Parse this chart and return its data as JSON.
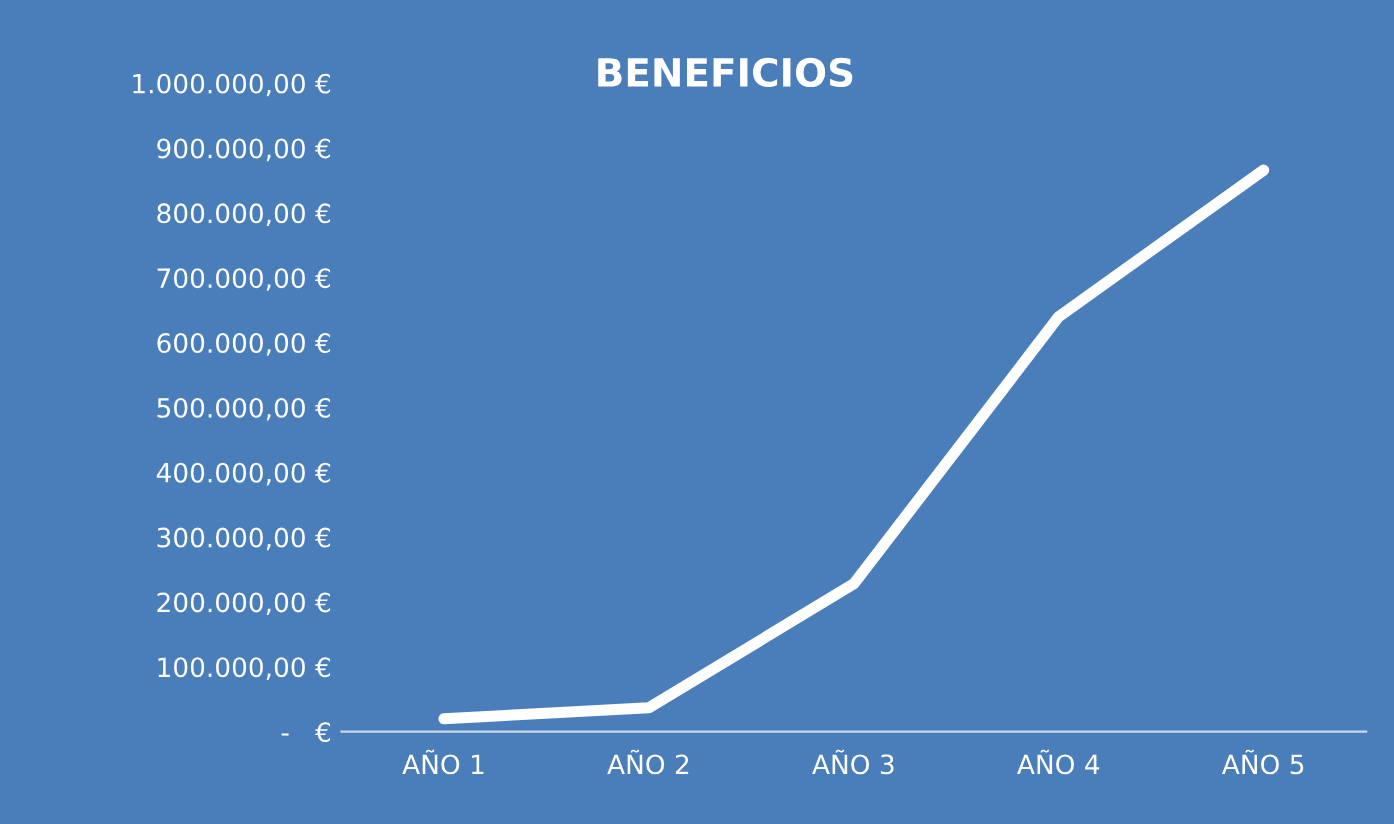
{
  "chart_data": {
    "type": "line",
    "title": "BENEFICIOS",
    "categories": [
      "AÑO 1",
      "AÑO 2",
      "AÑO 3",
      "AÑO 4",
      "AÑO 5"
    ],
    "series": [
      {
        "color": "#ffffff",
        "values": [
          20000,
          37000,
          228000,
          640000,
          866000
        ]
      }
    ],
    "ylim": [
      0,
      1000000
    ],
    "yticks": [
      {
        "value": 0,
        "label": "-   €"
      },
      {
        "value": 100000,
        "label": "100.000,00 €"
      },
      {
        "value": 200000,
        "label": "200.000,00 €"
      },
      {
        "value": 300000,
        "label": "300.000,00 €"
      },
      {
        "value": 400000,
        "label": "400.000,00 €"
      },
      {
        "value": 500000,
        "label": "500.000,00 €"
      },
      {
        "value": 600000,
        "label": "600.000,00 €"
      },
      {
        "value": 700000,
        "label": "700.000,00 €"
      },
      {
        "value": 800000,
        "label": "800.000,00 €"
      },
      {
        "value": 900000,
        "label": "900.000,00 €"
      },
      {
        "value": 1000000,
        "label": "1.000.000,00 €"
      }
    ],
    "grid": false,
    "legend": false,
    "marker": "none",
    "line_style": "solid"
  }
}
